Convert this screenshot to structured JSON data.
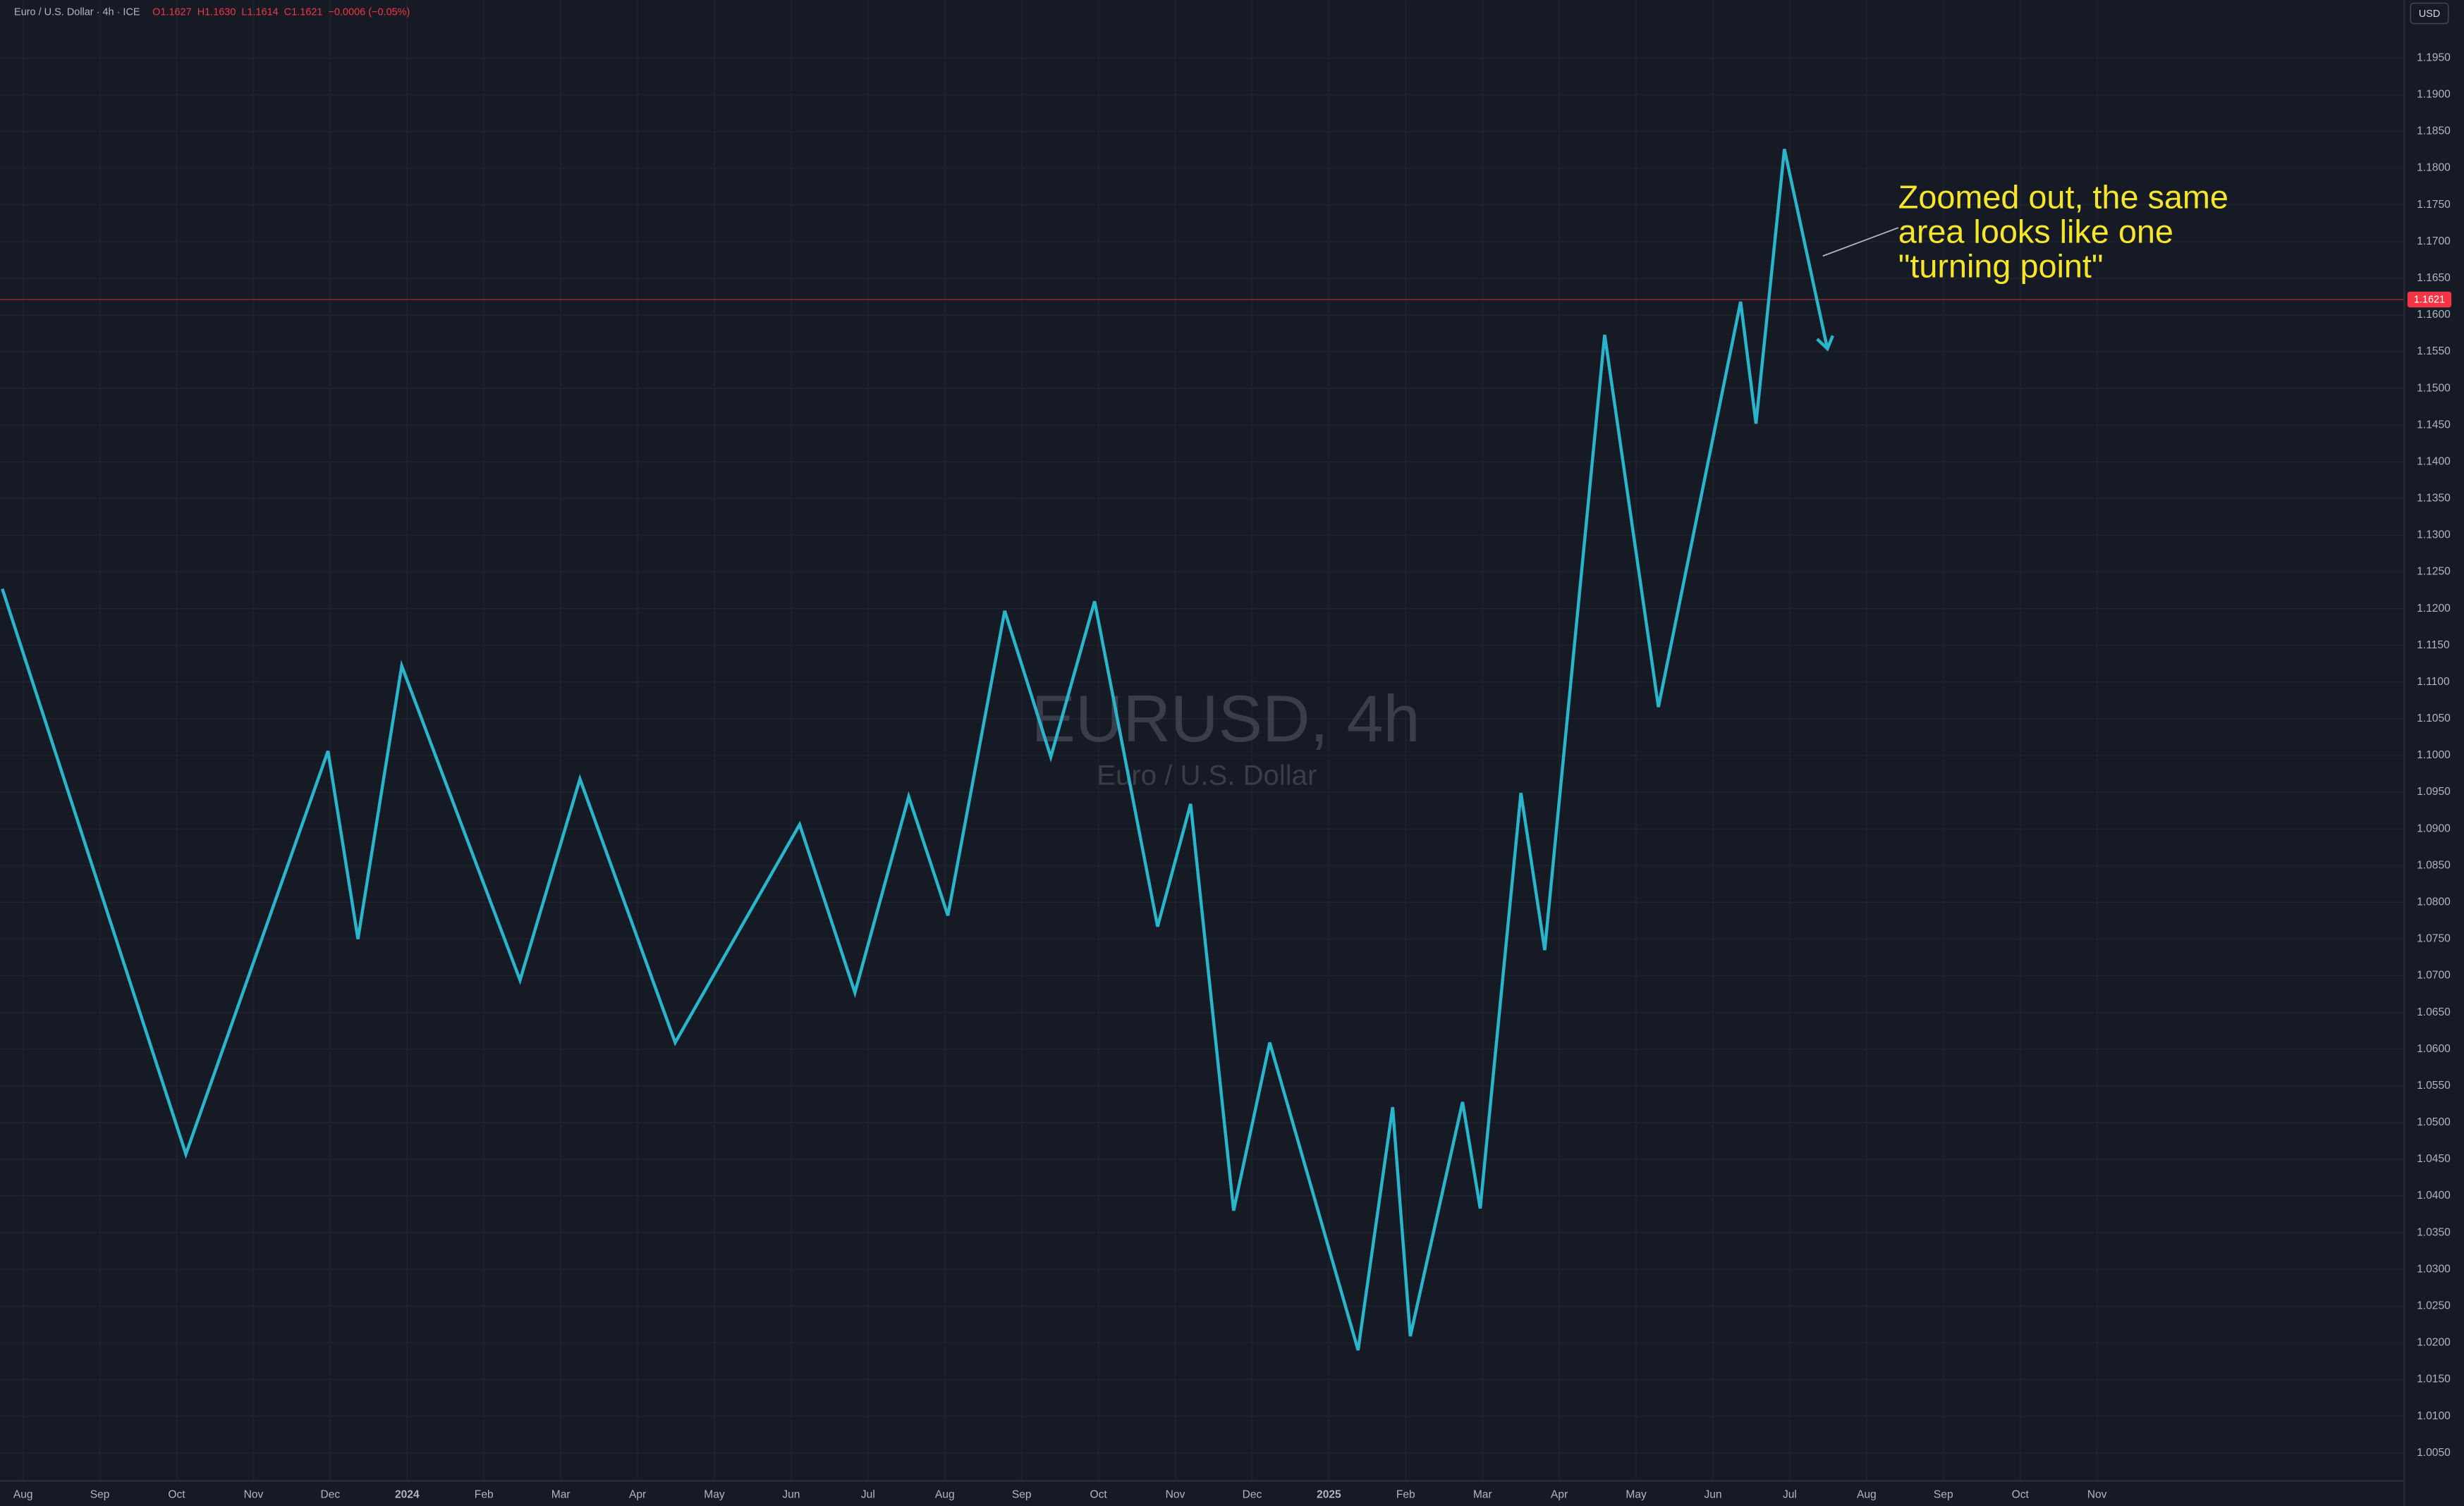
{
  "header": {
    "symbol": "Euro / U.S. Dollar · 4h · ICE",
    "ohlc": "O1.1627  H1.1630  L1.1614  C1.1621  −0.0006 (−0.05%)",
    "currency": "USD"
  },
  "chart_data": {
    "type": "line",
    "title": "EURUSD, 4h",
    "subtitle": "Euro / U.S. Dollar",
    "annotation": [
      "Zoomed out, the same",
      "area looks like one",
      "\"turning point\""
    ],
    "series": [
      {
        "name": "EURUSD zigzag",
        "color": "#29b6cc",
        "x": [
          7.73,
          10.12,
          11.97,
          12.36,
          12.93,
          14.47,
          15.25,
          16.49,
          18.11,
          18.83,
          19.53,
          20.04,
          20.78,
          21.38,
          21.95,
          22.77,
          23.2,
          23.76,
          24.23,
          25.38,
          25.83,
          26.06,
          26.74,
          26.97,
          27.5,
          27.81,
          28.59,
          29.29,
          30.36,
          30.56,
          30.93,
          31.49
        ],
        "values": [
          1.1227,
          1.0457,
          1.1006,
          1.075,
          1.1122,
          1.0694,
          1.0968,
          1.0609,
          1.0906,
          1.0677,
          1.0944,
          1.0782,
          1.1197,
          1.0998,
          1.121,
          1.0767,
          1.0934,
          1.038,
          1.0609,
          1.019,
          1.0521,
          1.0209,
          1.0528,
          1.0383,
          1.0949,
          1.0735,
          1.1573,
          1.1066,
          1.1618,
          1.1452,
          1.1826,
          1.1554
        ]
      }
    ],
    "last_price": 1.1621,
    "last_price_color": "#f23645",
    "xlim": [
      7.7,
      39.0
    ],
    "xticks": [
      {
        "value": 8,
        "label": "Aug"
      },
      {
        "value": 9,
        "label": "Sep"
      },
      {
        "value": 10,
        "label": "Oct"
      },
      {
        "value": 11,
        "label": "Nov"
      },
      {
        "value": 12,
        "label": "Dec"
      },
      {
        "value": 13,
        "label": "2024"
      },
      {
        "value": 14,
        "label": "Feb"
      },
      {
        "value": 15,
        "label": "Mar"
      },
      {
        "value": 16,
        "label": "Apr"
      },
      {
        "value": 17,
        "label": "May"
      },
      {
        "value": 18,
        "label": "Jun"
      },
      {
        "value": 19,
        "label": "Jul"
      },
      {
        "value": 20,
        "label": "Aug"
      },
      {
        "value": 21,
        "label": "Sep"
      },
      {
        "value": 22,
        "label": "Oct"
      },
      {
        "value": 23,
        "label": "Nov"
      },
      {
        "value": 24,
        "label": "Dec"
      },
      {
        "value": 25,
        "label": "2025"
      },
      {
        "value": 26,
        "label": "Feb"
      },
      {
        "value": 27,
        "label": "Mar"
      },
      {
        "value": 28,
        "label": "Apr"
      },
      {
        "value": 29,
        "label": "May"
      },
      {
        "value": 30,
        "label": "Jun"
      },
      {
        "value": 31,
        "label": "Jul"
      },
      {
        "value": 32,
        "label": "Aug"
      },
      {
        "value": 33,
        "label": "Sep"
      },
      {
        "value": 34,
        "label": "Oct"
      },
      {
        "value": 35,
        "label": "Nov"
      }
    ],
    "ylim": [
      1.0012,
      1.2029
    ],
    "yticks": [
      {
        "value": 1.005,
        "label": "1.0050"
      },
      {
        "value": 1.01,
        "label": "1.0100"
      },
      {
        "value": 1.015,
        "label": "1.0150"
      },
      {
        "value": 1.02,
        "label": "1.0200"
      },
      {
        "value": 1.025,
        "label": "1.0250"
      },
      {
        "value": 1.03,
        "label": "1.0300"
      },
      {
        "value": 1.035,
        "label": "1.0350"
      },
      {
        "value": 1.04,
        "label": "1.0400"
      },
      {
        "value": 1.045,
        "label": "1.0450"
      },
      {
        "value": 1.05,
        "label": "1.0500"
      },
      {
        "value": 1.055,
        "label": "1.0550"
      },
      {
        "value": 1.06,
        "label": "1.0600"
      },
      {
        "value": 1.065,
        "label": "1.0650"
      },
      {
        "value": 1.07,
        "label": "1.0700"
      },
      {
        "value": 1.075,
        "label": "1.0750"
      },
      {
        "value": 1.08,
        "label": "1.0800"
      },
      {
        "value": 1.085,
        "label": "1.0850"
      },
      {
        "value": 1.09,
        "label": "1.0900"
      },
      {
        "value": 1.095,
        "label": "1.0950"
      },
      {
        "value": 1.1,
        "label": "1.1000"
      },
      {
        "value": 1.105,
        "label": "1.1050"
      },
      {
        "value": 1.11,
        "label": "1.1100"
      },
      {
        "value": 1.115,
        "label": "1.1150"
      },
      {
        "value": 1.12,
        "label": "1.1200"
      },
      {
        "value": 1.125,
        "label": "1.1250"
      },
      {
        "value": 1.13,
        "label": "1.1300"
      },
      {
        "value": 1.135,
        "label": "1.1350"
      },
      {
        "value": 1.14,
        "label": "1.1400"
      },
      {
        "value": 1.145,
        "label": "1.1450"
      },
      {
        "value": 1.15,
        "label": "1.1500"
      },
      {
        "value": 1.155,
        "label": "1.1550"
      },
      {
        "value": 1.16,
        "label": "1.1600"
      },
      {
        "value": 1.165,
        "label": "1.1650"
      },
      {
        "value": 1.17,
        "label": "1.1700"
      },
      {
        "value": 1.175,
        "label": "1.1750"
      },
      {
        "value": 1.18,
        "label": "1.1800"
      },
      {
        "value": 1.185,
        "label": "1.1850"
      },
      {
        "value": 1.19,
        "label": "1.1900"
      },
      {
        "value": 1.195,
        "label": "1.1950"
      }
    ],
    "grid": true
  }
}
